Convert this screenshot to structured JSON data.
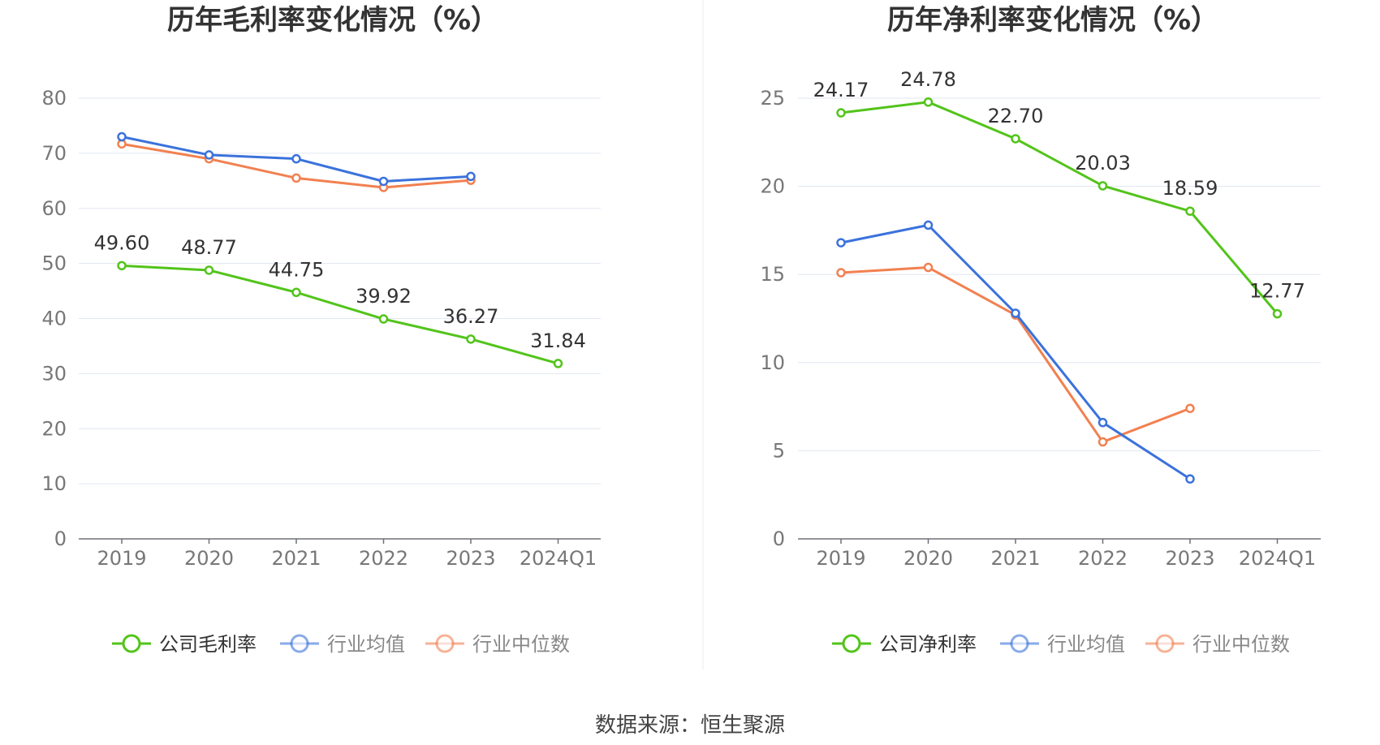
{
  "source": "数据来源：恒生聚源",
  "chart_data": [
    {
      "type": "line",
      "title": "历年毛利率变化情况（%）",
      "categories": [
        "2019",
        "2020",
        "2021",
        "2022",
        "2023",
        "2024Q1"
      ],
      "ylim": [
        0,
        80
      ],
      "yticks": [
        0,
        10,
        20,
        30,
        40,
        50,
        60,
        70,
        80
      ],
      "grid": true,
      "legend_position": "bottom-center",
      "series": [
        {
          "name": "公司毛利率",
          "color": "#52c41a",
          "values": [
            49.6,
            48.77,
            44.75,
            39.92,
            36.27,
            31.84
          ],
          "labels": [
            "49.60",
            "48.77",
            "44.75",
            "39.92",
            "36.27",
            "31.84"
          ]
        },
        {
          "name": "行业均值",
          "color": "#3b72dc",
          "values": [
            73.0,
            69.7,
            69.0,
            64.9,
            65.8,
            null
          ]
        },
        {
          "name": "行业中位数",
          "color": "#f28050",
          "values": [
            71.7,
            69.0,
            65.5,
            63.8,
            65.1,
            null
          ]
        }
      ]
    },
    {
      "type": "line",
      "title": "历年净利率变化情况（%）",
      "categories": [
        "2019",
        "2020",
        "2021",
        "2022",
        "2023",
        "2024Q1"
      ],
      "ylim": [
        0,
        25
      ],
      "yticks": [
        0,
        5,
        10,
        15,
        20,
        25
      ],
      "grid": true,
      "legend_position": "bottom-center",
      "series": [
        {
          "name": "公司净利率",
          "color": "#52c41a",
          "values": [
            24.17,
            24.78,
            22.7,
            20.03,
            18.59,
            12.77
          ],
          "labels": [
            "24.17",
            "24.78",
            "22.70",
            "20.03",
            "18.59",
            "12.77"
          ]
        },
        {
          "name": "行业均值",
          "color": "#3b72dc",
          "values": [
            16.8,
            17.8,
            12.8,
            6.6,
            3.4,
            null
          ]
        },
        {
          "name": "行业中位数",
          "color": "#f28050",
          "values": [
            15.1,
            15.4,
            12.7,
            5.5,
            7.4,
            null
          ]
        }
      ]
    }
  ]
}
